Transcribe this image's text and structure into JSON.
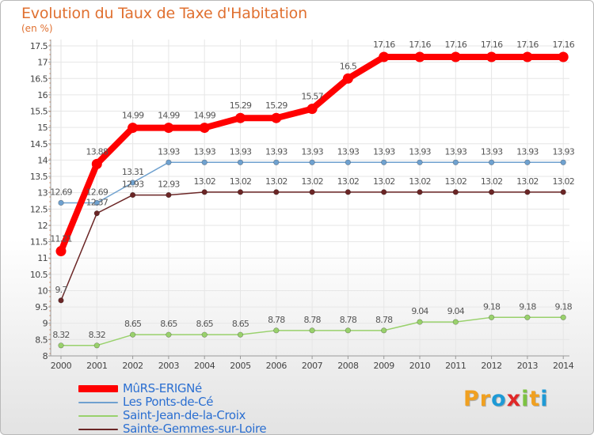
{
  "header": {
    "title": "Evolution du Taux de Taxe d'Habitation",
    "unit": "(en %)"
  },
  "colors": {
    "title": "#e07030",
    "axis_text": "#444444",
    "grid": "#e6e6e6",
    "legend_text": "#2b6fd1"
  },
  "logo": {
    "letters": [
      "P",
      "r",
      "o",
      "x",
      "i",
      "t",
      "i"
    ],
    "colors": [
      "#f0a020",
      "#f0a020",
      "#1e9ad6",
      "#e02828",
      "#7cc242",
      "#f0a020",
      "#1e9ad6"
    ]
  },
  "chart_data": {
    "type": "line",
    "title": "Evolution du Taux de Taxe d'Habitation",
    "ylabel": "(en %)",
    "x": [
      2000,
      2001,
      2002,
      2003,
      2004,
      2005,
      2006,
      2007,
      2008,
      2009,
      2010,
      2011,
      2012,
      2013,
      2014
    ],
    "ylim": [
      8,
      17.5
    ],
    "yticks": [
      8,
      8.5,
      9,
      9.5,
      10,
      10.5,
      11,
      11.5,
      12,
      12.5,
      13,
      13.5,
      14,
      14.5,
      15,
      15.5,
      16,
      16.5,
      17,
      17.5
    ],
    "grid": true,
    "legend_position": "bottom-left",
    "series": [
      {
        "name": "MûRS-ERIGNé",
        "color": "#ff0000",
        "emphasis": true,
        "values": [
          11.21,
          13.88,
          14.99,
          14.99,
          14.99,
          15.29,
          15.29,
          15.57,
          16.5,
          17.16,
          17.16,
          17.16,
          17.16,
          17.16,
          17.16
        ],
        "labels": [
          "11.21",
          "13.88",
          "14.99",
          "14.99",
          "14.99",
          "15.29",
          "15.29",
          "15.57",
          "16.5",
          "17.16",
          "17.16",
          "17.16",
          "17.16",
          "17.16",
          "17.16"
        ]
      },
      {
        "name": "Les Ponts-de-Cé",
        "color": "#6fa1cf",
        "values": [
          12.69,
          12.69,
          13.31,
          13.93,
          13.93,
          13.93,
          13.93,
          13.93,
          13.93,
          13.93,
          13.93,
          13.93,
          13.93,
          13.93,
          13.93
        ],
        "labels": [
          "12.69",
          "12.69",
          "13.31",
          "13.93",
          "13.93",
          "13.93",
          "13.93",
          "13.93",
          "13.93",
          "13.93",
          "13.93",
          "13.93",
          "13.93",
          "13.93",
          "13.93"
        ]
      },
      {
        "name": "Saint-Jean-de-la-Croix",
        "color": "#99d16c",
        "values": [
          8.32,
          8.32,
          8.65,
          8.65,
          8.65,
          8.65,
          8.78,
          8.78,
          8.78,
          8.78,
          9.04,
          9.04,
          9.18,
          9.18,
          9.18
        ],
        "labels": [
          "8.32",
          "8.32",
          "8.65",
          "8.65",
          "8.65",
          "8.65",
          "8.78",
          "8.78",
          "8.78",
          "8.78",
          "9.04",
          "9.04",
          "9.18",
          "9.18",
          "9.18"
        ]
      },
      {
        "name": "Sainte-Gemmes-sur-Loire",
        "color": "#6b2626",
        "values": [
          9.7,
          12.37,
          12.93,
          12.93,
          13.02,
          13.02,
          13.02,
          13.02,
          13.02,
          13.02,
          13.02,
          13.02,
          13.02,
          13.02,
          13.02
        ],
        "labels": [
          "9.7",
          "12.37",
          "12.93",
          "12.93",
          "13.02",
          "13.02",
          "13.02",
          "13.02",
          "13.02",
          "13.02",
          "13.02",
          "13.02",
          "13.02",
          "13.02",
          "13.02"
        ]
      }
    ]
  }
}
